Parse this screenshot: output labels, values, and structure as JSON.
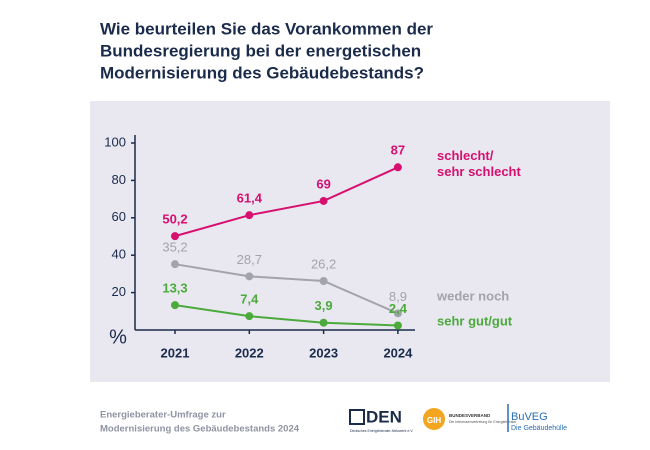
{
  "chart_data": {
    "type": "line",
    "title": [
      "Wie beurteilen Sie das Vorankommen der",
      "Bundesregierung bei der energetischen",
      "Modernisierung des Gebäudebestands?"
    ],
    "ylabel": "%",
    "categories": [
      "2021",
      "2022",
      "2023",
      "2024"
    ],
    "ylim": [
      0,
      100
    ],
    "yticks": [
      20,
      40,
      60,
      80,
      100
    ],
    "series": [
      {
        "name": "schlecht/ sehr schlecht",
        "color": "#d6106f",
        "values": [
          50.2,
          61.4,
          69,
          87
        ],
        "value_labels": [
          "50,2",
          "61,4",
          "69",
          "87"
        ]
      },
      {
        "name": "weder noch",
        "color": "#a3a3ab",
        "values": [
          35.2,
          28.7,
          26.2,
          8.9
        ],
        "value_labels": [
          "35,2",
          "28,7",
          "26,2",
          "8,9"
        ]
      },
      {
        "name": "sehr gut/gut",
        "color": "#4caa3c",
        "values": [
          13.3,
          7.4,
          3.9,
          2.4
        ],
        "value_labels": [
          "13,3",
          "7,4",
          "3,9",
          "2,4"
        ]
      }
    ]
  },
  "footer": {
    "source": [
      "Energieberater-Umfrage zur",
      "Modernisierung des Gebäudebestands 2024"
    ],
    "logos": [
      "DEN",
      "Deutsches Energieberater-Netzwerk e.V.",
      "GIH",
      "BUNDESVERBAND",
      "Die Interessenvertretung für Energieberater",
      "BuVEG",
      "Die Gebäudehülle"
    ]
  }
}
